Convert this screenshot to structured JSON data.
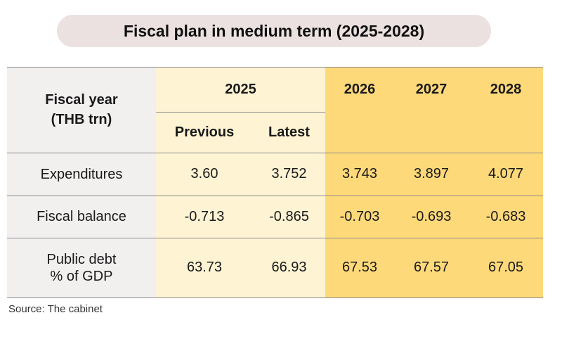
{
  "title": "Fiscal plan in medium term (2025-2028)",
  "header": {
    "fiscal_year_line1": "Fiscal year",
    "fiscal_year_line2": "(THB trn)",
    "year_2025": "2025",
    "sub_previous": "Previous",
    "sub_latest": "Latest",
    "year_2026": "2026",
    "year_2027": "2027",
    "year_2028": "2028"
  },
  "rows": [
    {
      "label_line1": "Expenditures",
      "label_line2": "",
      "values": [
        "3.60",
        "3.752",
        "3.743",
        "3.897",
        "4.077"
      ]
    },
    {
      "label_line1": "Fiscal balance",
      "label_line2": "",
      "values": [
        "-0.713",
        "-0.865",
        "-0.703",
        "-0.693",
        "-0.683"
      ]
    },
    {
      "label_line1": "Public debt",
      "label_line2": "% of GDP",
      "values": [
        "63.73",
        "66.93",
        "67.53",
        "67.57",
        "67.05"
      ]
    }
  ],
  "source": "Source:  The cabinet",
  "colors": {
    "label_column": "#f2efef",
    "col_2025": "#fef3d3",
    "col_future": "#fed97a",
    "title_pill": "#ece1e1"
  }
}
